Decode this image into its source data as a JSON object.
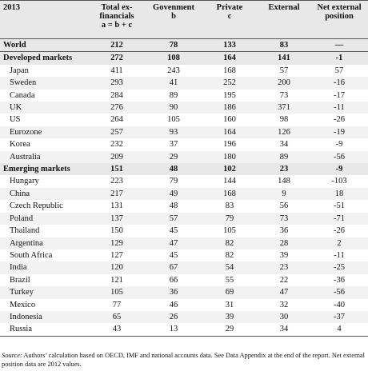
{
  "header": {
    "year": "2013",
    "col_total": [
      "Total ex-",
      "financials",
      "a = b + c"
    ],
    "col_government": [
      "Govenment",
      "b"
    ],
    "col_private": [
      "Private",
      "c"
    ],
    "col_external": [
      "External"
    ],
    "col_net_external": [
      "Net external",
      "position"
    ]
  },
  "rows": [
    {
      "kind": "world",
      "name": "World",
      "total": "212",
      "gov": "78",
      "priv": "133",
      "ext": "83",
      "net": "—"
    },
    {
      "kind": "group",
      "name": "Developed markets",
      "total": "272",
      "gov": "108",
      "priv": "164",
      "ext": "141",
      "net": "-1"
    },
    {
      "kind": "sub",
      "name": "Japan",
      "total": "411",
      "gov": "243",
      "priv": "168",
      "ext": "57",
      "net": "57"
    },
    {
      "kind": "sub",
      "name": "Sweden",
      "total": "293",
      "gov": "41",
      "priv": "252",
      "ext": "200",
      "net": "-16"
    },
    {
      "kind": "sub",
      "name": "Canada",
      "total": "284",
      "gov": "89",
      "priv": "195",
      "ext": "73",
      "net": "-17"
    },
    {
      "kind": "sub",
      "name": "UK",
      "total": "276",
      "gov": "90",
      "priv": "186",
      "ext": "371",
      "net": "-11"
    },
    {
      "kind": "sub",
      "name": "US",
      "total": "264",
      "gov": "105",
      "priv": "160",
      "ext": "98",
      "net": "-26"
    },
    {
      "kind": "sub",
      "name": "Eurozone",
      "total": "257",
      "gov": "93",
      "priv": "164",
      "ext": "126",
      "net": "-19"
    },
    {
      "kind": "sub",
      "name": "Korea",
      "total": "232",
      "gov": "37",
      "priv": "196",
      "ext": "34",
      "net": "-9"
    },
    {
      "kind": "sub",
      "name": "Australia",
      "total": "209",
      "gov": "29",
      "priv": "180",
      "ext": "89",
      "net": "-56"
    },
    {
      "kind": "group",
      "name": "Emerging markets",
      "total": "151",
      "gov": "48",
      "priv": "102",
      "ext": "23",
      "net": "-9"
    },
    {
      "kind": "sub",
      "name": "Hungary",
      "total": "223",
      "gov": "79",
      "priv": "144",
      "ext": "148",
      "net": "-103"
    },
    {
      "kind": "sub",
      "name": "China",
      "total": "217",
      "gov": "49",
      "priv": "168",
      "ext": "9",
      "net": "18"
    },
    {
      "kind": "sub",
      "name": "Czech Republic",
      "total": "131",
      "gov": "48",
      "priv": "83",
      "ext": "56",
      "net": "-51"
    },
    {
      "kind": "sub",
      "name": "Poland",
      "total": "137",
      "gov": "57",
      "priv": "79",
      "ext": "73",
      "net": "-71"
    },
    {
      "kind": "sub",
      "name": "Thailand",
      "total": "150",
      "gov": "45",
      "priv": "105",
      "ext": "36",
      "net": "-26"
    },
    {
      "kind": "sub",
      "name": "Argentina",
      "total": "129",
      "gov": "47",
      "priv": "82",
      "ext": "28",
      "net": "2"
    },
    {
      "kind": "sub",
      "name": "South Africa",
      "total": "127",
      "gov": "45",
      "priv": "82",
      "ext": "39",
      "net": "-11"
    },
    {
      "kind": "sub",
      "name": "India",
      "total": "120",
      "gov": "67",
      "priv": "54",
      "ext": "23",
      "net": "-25"
    },
    {
      "kind": "sub",
      "name": "Brazil",
      "total": "121",
      "gov": "66",
      "priv": "55",
      "ext": "22",
      "net": "-36"
    },
    {
      "kind": "sub",
      "name": "Turkey",
      "total": "105",
      "gov": "36",
      "priv": "69",
      "ext": "47",
      "net": "-56"
    },
    {
      "kind": "sub",
      "name": "Mexico",
      "total": "77",
      "gov": "46",
      "priv": "31",
      "ext": "32",
      "net": "-40"
    },
    {
      "kind": "sub",
      "name": "Indonesia",
      "total": "65",
      "gov": "26",
      "priv": "39",
      "ext": "30",
      "net": "-37"
    },
    {
      "kind": "sub",
      "name": "Russia",
      "total": "43",
      "gov": "13",
      "priv": "29",
      "ext": "34",
      "net": "4"
    }
  ],
  "source": {
    "label": "Source:",
    "text": " Authors’ calculation based on OECD, IMF and national accounts data. See Data Appendix at the end of the report. Net external position data are 2012 values."
  }
}
